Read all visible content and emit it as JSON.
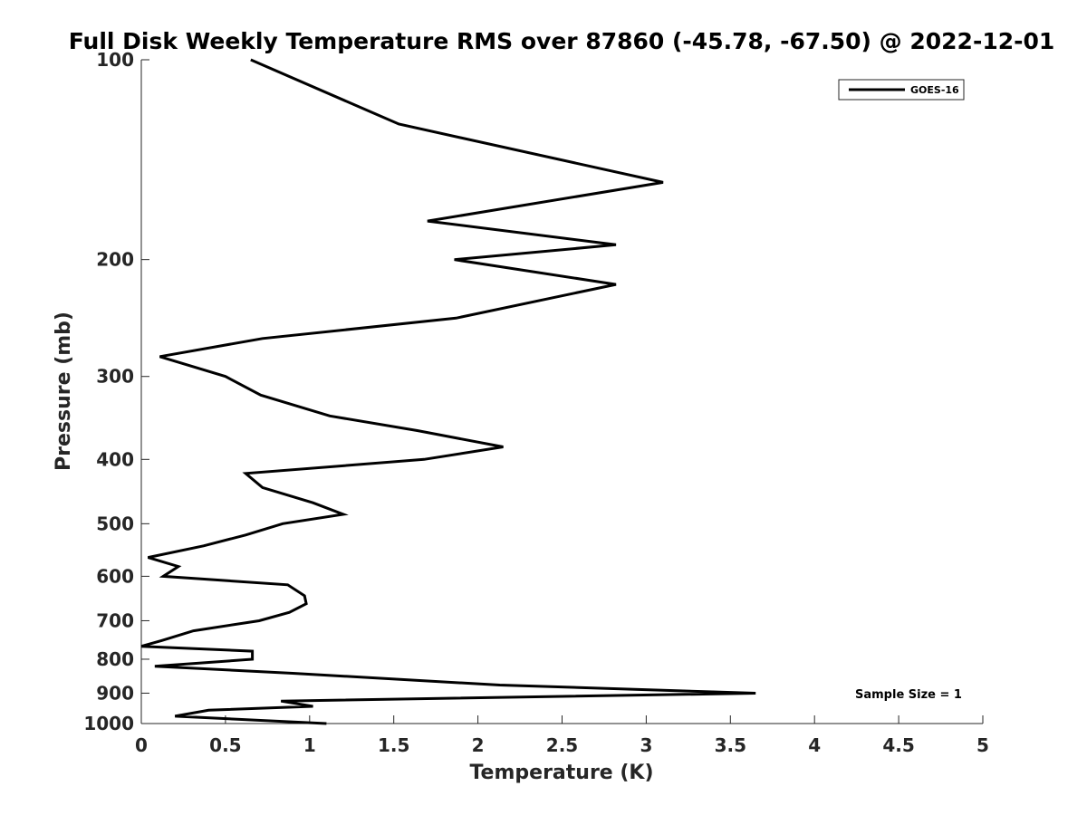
{
  "chart_data": {
    "type": "line",
    "title": "Full Disk Weekly Temperature RMS over 87860 (-45.78, -67.50) @ 2022-12-01",
    "xlabel": "Temperature (K)",
    "ylabel": "Pressure (mb)",
    "xlim": [
      0,
      5
    ],
    "ylim": [
      100,
      1000
    ],
    "y_scale": "log",
    "y_reversed": true,
    "x_ticks": [
      "0",
      "0.5",
      "1",
      "1.5",
      "2",
      "2.5",
      "3",
      "3.5",
      "4",
      "4.5",
      "5"
    ],
    "y_ticks": [
      "100",
      "200",
      "300",
      "400",
      "500",
      "600",
      "700",
      "800",
      "900",
      "1000"
    ],
    "grid": false,
    "legend_position": "top-right",
    "series": [
      {
        "name": "GOES-16",
        "color": "#000000",
        "points": [
          [
            0.65,
            100
          ],
          [
            1.53,
            125
          ],
          [
            3.1,
            153
          ],
          [
            1.7,
            175
          ],
          [
            2.82,
            190
          ],
          [
            1.86,
            200
          ],
          [
            2.82,
            218
          ],
          [
            1.87,
            245
          ],
          [
            0.72,
            263
          ],
          [
            0.11,
            280
          ],
          [
            0.5,
            300
          ],
          [
            0.71,
            320
          ],
          [
            1.12,
            344
          ],
          [
            1.64,
            362
          ],
          [
            2.15,
            383
          ],
          [
            1.68,
            400
          ],
          [
            0.62,
            420
          ],
          [
            0.72,
            441
          ],
          [
            1.02,
            465
          ],
          [
            1.2,
            484
          ],
          [
            0.84,
            500
          ],
          [
            0.62,
            520
          ],
          [
            0.37,
            540
          ],
          [
            0.04,
            562
          ],
          [
            0.22,
            580
          ],
          [
            0.13,
            600
          ],
          [
            0.87,
            618
          ],
          [
            0.97,
            642
          ],
          [
            0.98,
            660
          ],
          [
            0.88,
            680
          ],
          [
            0.7,
            700
          ],
          [
            0.31,
            725
          ],
          [
            0.12,
            750
          ],
          [
            0.0,
            765
          ],
          [
            0.66,
            778
          ],
          [
            0.66,
            800
          ],
          [
            0.08,
            820
          ],
          [
            0.9,
            840
          ],
          [
            2.13,
            875
          ],
          [
            3.65,
            900
          ],
          [
            0.83,
            925
          ],
          [
            1.02,
            942
          ],
          [
            0.4,
            955
          ],
          [
            0.2,
            975
          ],
          [
            1.1,
            1000
          ]
        ]
      }
    ],
    "annotations": [
      {
        "text": "Sample Size = 1",
        "position": "bottom-right"
      }
    ]
  }
}
